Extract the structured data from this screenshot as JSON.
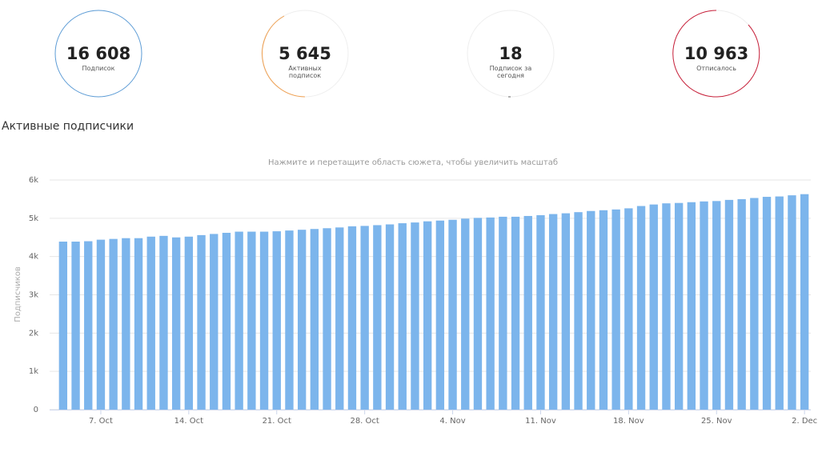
{
  "stats": [
    {
      "value": "16 608",
      "label": "Подписок"
    },
    {
      "value": "5 645",
      "label": "Активных подписок"
    },
    {
      "value": "18",
      "label": "Подписок за сегодня"
    },
    {
      "value": "10 963",
      "label": "Отписалось"
    }
  ],
  "section_title": "Активные подписчики",
  "chart_data": {
    "type": "bar",
    "subtitle": "Нажмите и перетащите область сюжета, чтобы увеличить масштаб",
    "y_label": "Подписчиков",
    "categories": [
      null,
      null,
      null,
      "7. Oct",
      null,
      null,
      null,
      null,
      null,
      null,
      "14. Oct",
      null,
      null,
      null,
      null,
      null,
      null,
      "21. Oct",
      null,
      null,
      null,
      null,
      null,
      null,
      "28. Oct",
      null,
      null,
      null,
      null,
      null,
      null,
      "4. Nov",
      null,
      null,
      null,
      null,
      null,
      null,
      "11. Nov",
      null,
      null,
      null,
      null,
      null,
      null,
      "18. Nov",
      null,
      null,
      null,
      null,
      null,
      null,
      "25. Nov",
      null,
      null,
      null,
      null,
      null,
      null,
      "2. Dec"
    ],
    "values": [
      4390,
      4390,
      4400,
      4440,
      4460,
      4480,
      4480,
      4520,
      4540,
      4500,
      4520,
      4560,
      4590,
      4620,
      4650,
      4650,
      4650,
      4660,
      4680,
      4700,
      4720,
      4740,
      4760,
      4790,
      4800,
      4820,
      4840,
      4870,
      4890,
      4920,
      4940,
      4960,
      4990,
      5010,
      5020,
      5040,
      5040,
      5060,
      5080,
      5110,
      5130,
      5160,
      5190,
      5210,
      5230,
      5260,
      5320,
      5360,
      5390,
      5400,
      5420,
      5440,
      5450,
      5480,
      5500,
      5530,
      5560,
      5570,
      5600,
      5630
    ],
    "color": "#7cb5ec",
    "ylim": [
      0,
      6000
    ],
    "yticks": [
      0,
      {
        "value": 1000,
        "label": "1k"
      },
      {
        "value": 2000,
        "label": "2k"
      },
      {
        "value": 3000,
        "label": "3k"
      },
      {
        "value": 4000,
        "label": "4k"
      },
      {
        "value": 5000,
        "label": "5k"
      },
      {
        "value": 6000,
        "label": "6k"
      }
    ],
    "grid": true
  }
}
